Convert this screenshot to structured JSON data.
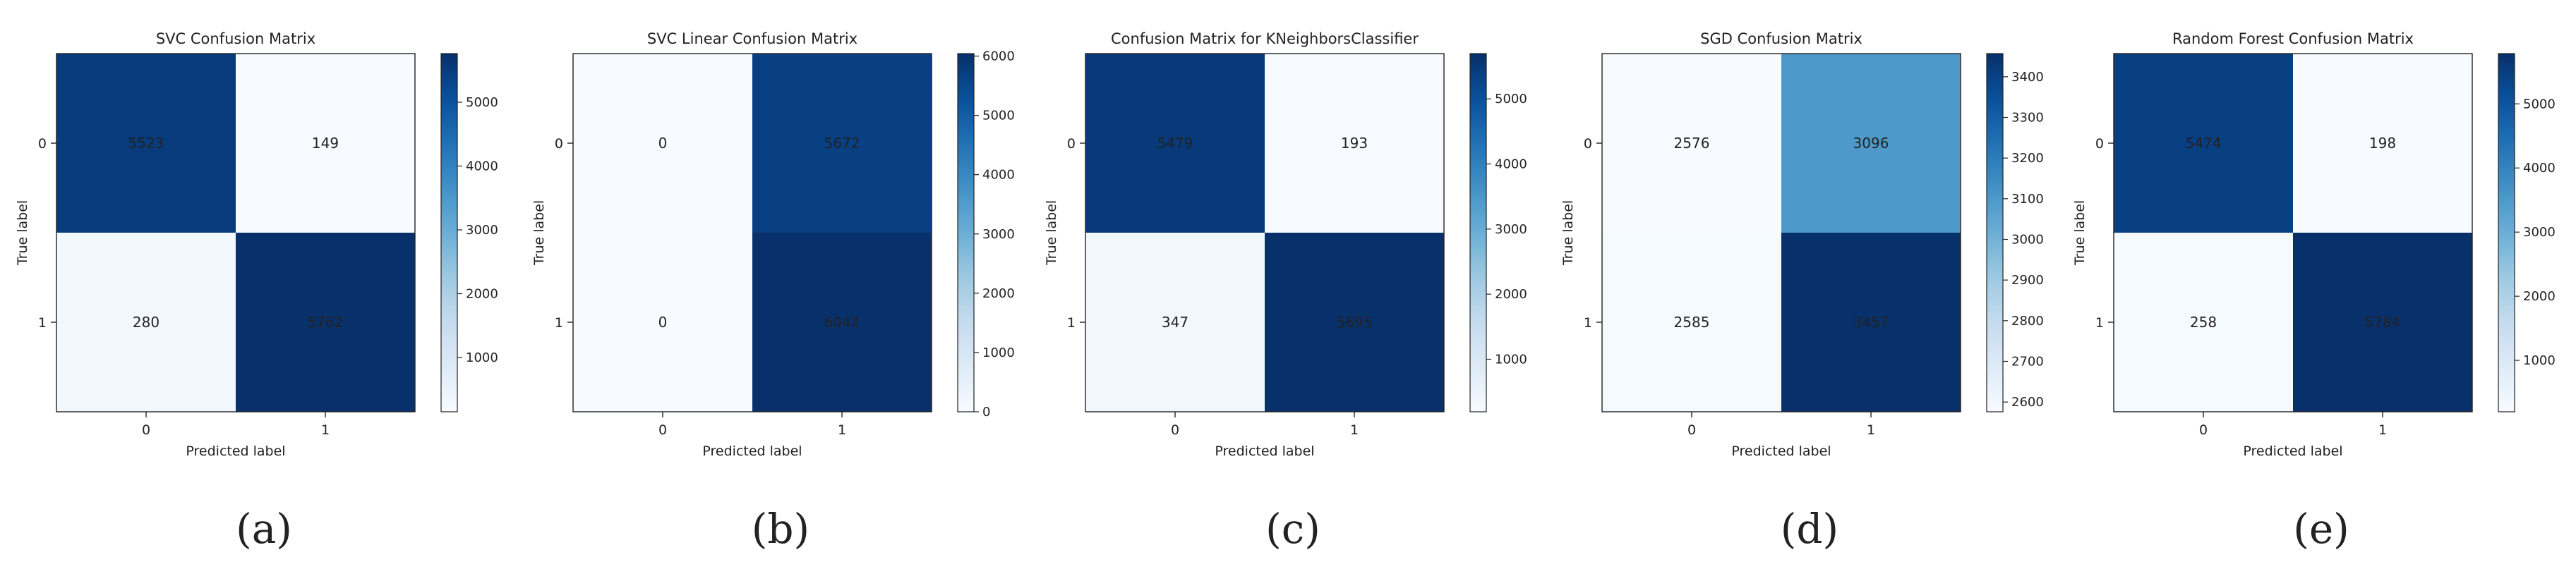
{
  "chart_data": [
    {
      "type": "heatmap",
      "title": "SVC Confusion Matrix",
      "xlabel": "Predicted label",
      "ylabel": "True label",
      "x_categories": [
        "0",
        "1"
      ],
      "y_categories": [
        "0",
        "1"
      ],
      "values": [
        [
          5523,
          149
        ],
        [
          280,
          5762
        ]
      ],
      "colormap": "Blues",
      "color_range": [
        149,
        5762
      ],
      "colorbar_ticks": [
        1000,
        2000,
        3000,
        4000,
        5000
      ],
      "caption": "(a)"
    },
    {
      "type": "heatmap",
      "title": "SVC Linear Confusion Matrix",
      "xlabel": "Predicted label",
      "ylabel": "True label",
      "x_categories": [
        "0",
        "1"
      ],
      "y_categories": [
        "0",
        "1"
      ],
      "values": [
        [
          0,
          5672
        ],
        [
          0,
          6042
        ]
      ],
      "colormap": "Blues",
      "color_range": [
        0,
        6042
      ],
      "colorbar_ticks": [
        0,
        1000,
        2000,
        3000,
        4000,
        5000,
        6000
      ],
      "caption": "(b)"
    },
    {
      "type": "heatmap",
      "title": "Confusion Matrix for KNeighborsClassifier",
      "xlabel": "Predicted label",
      "ylabel": "True label",
      "x_categories": [
        "0",
        "1"
      ],
      "y_categories": [
        "0",
        "1"
      ],
      "values": [
        [
          5479,
          193
        ],
        [
          347,
          5695
        ]
      ],
      "colormap": "Blues",
      "color_range": [
        193,
        5695
      ],
      "colorbar_ticks": [
        1000,
        2000,
        3000,
        4000,
        5000
      ],
      "caption": "(c)"
    },
    {
      "type": "heatmap",
      "title": "SGD Confusion Matrix",
      "xlabel": "Predicted label",
      "ylabel": "True label",
      "x_categories": [
        "0",
        "1"
      ],
      "y_categories": [
        "0",
        "1"
      ],
      "values": [
        [
          2576,
          3096
        ],
        [
          2585,
          3457
        ]
      ],
      "colormap": "Blues",
      "color_range": [
        2576,
        3457
      ],
      "colorbar_ticks": [
        2600,
        2700,
        2800,
        2900,
        3000,
        3100,
        3200,
        3300,
        3400
      ],
      "caption": "(d)"
    },
    {
      "type": "heatmap",
      "title": "Random Forest Confusion Matrix",
      "xlabel": "Predicted label",
      "ylabel": "True label",
      "x_categories": [
        "0",
        "1"
      ],
      "y_categories": [
        "0",
        "1"
      ],
      "values": [
        [
          5474,
          198
        ],
        [
          258,
          5784
        ]
      ],
      "colormap": "Blues",
      "color_range": [
        198,
        5784
      ],
      "colorbar_ticks": [
        1000,
        2000,
        3000,
        4000,
        5000
      ],
      "caption": "(e)"
    }
  ]
}
